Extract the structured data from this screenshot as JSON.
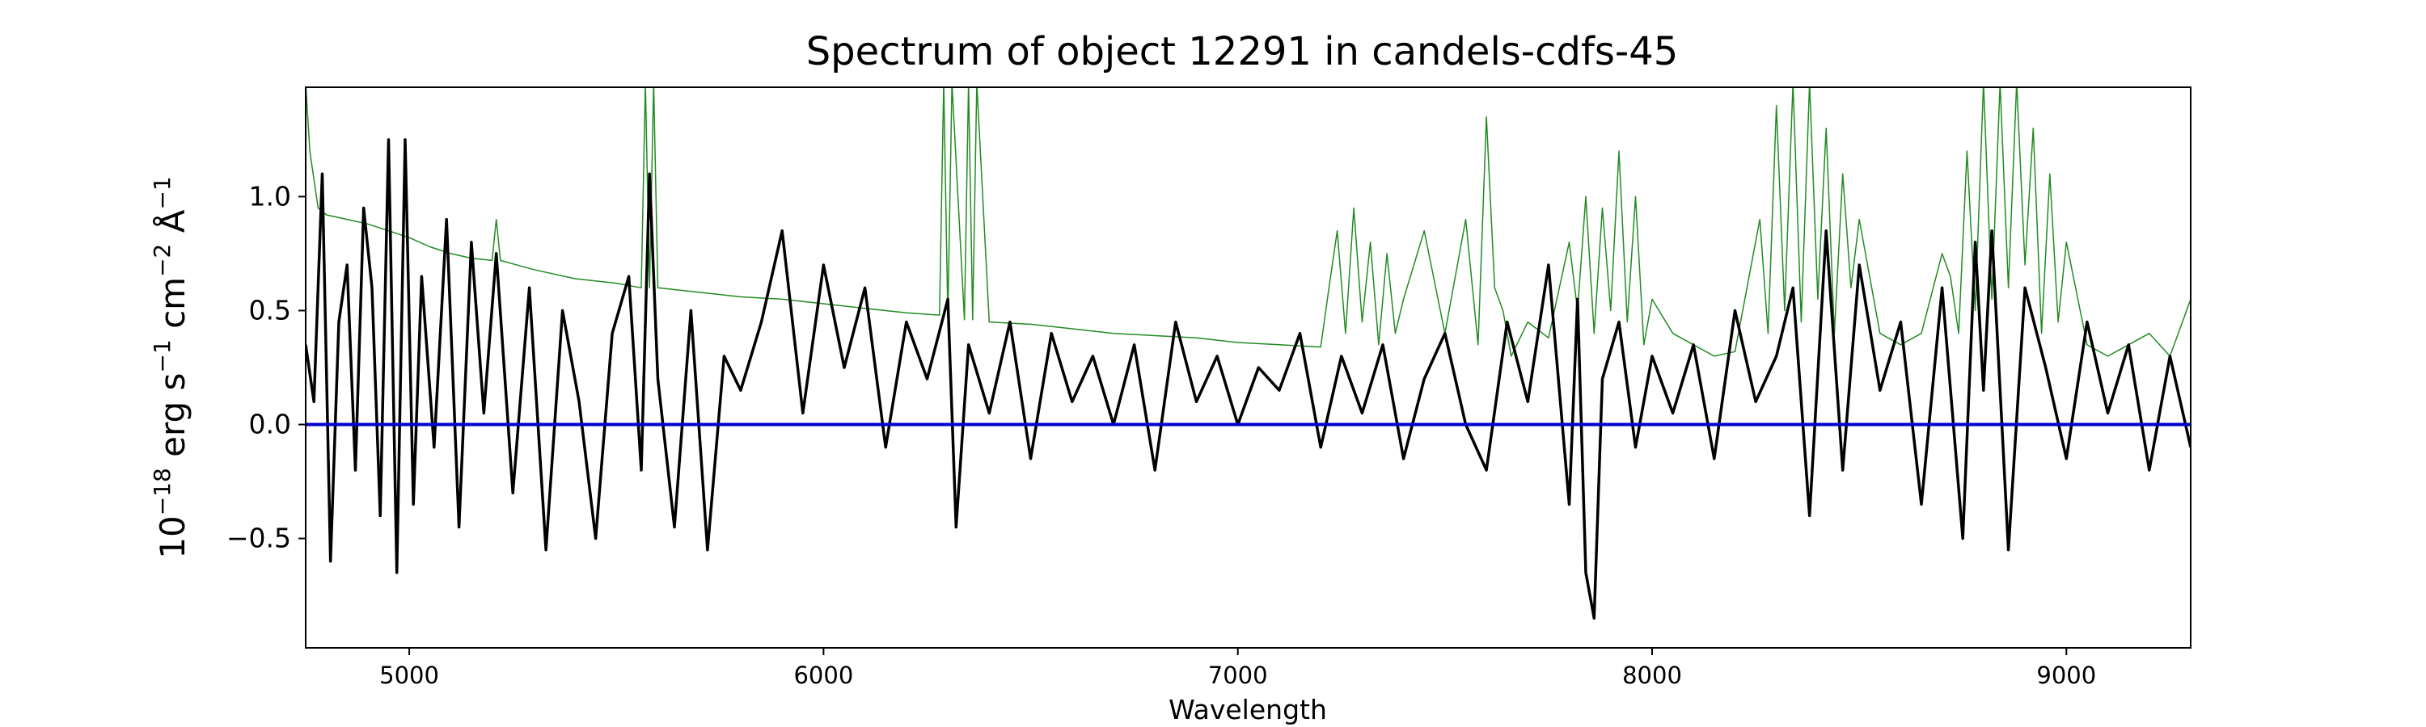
{
  "chart_data": {
    "type": "line",
    "title": "Spectrum of object 12291 in candels-cdfs-45",
    "xlabel": "Wavelength",
    "ylabel": {
      "prefix": "10",
      "exp1": "−18",
      "mid1": " erg s",
      "exp2": "−1",
      "mid2": " cm",
      "exp3": "−2",
      "mid3": " Å",
      "exp4": "−1"
    },
    "xlim": [
      4750,
      9300
    ],
    "ylim": [
      -0.98,
      1.48
    ],
    "xticks": [
      5000,
      6000,
      7000,
      8000,
      9000
    ],
    "xtick_labels": [
      "5000",
      "6000",
      "7000",
      "8000",
      "9000"
    ],
    "yticks": [
      -0.5,
      0.0,
      0.5,
      1.0
    ],
    "ytick_labels": [
      "−0.5",
      "0.0",
      "0.5",
      "1.0"
    ],
    "grid": false,
    "series": [
      {
        "role": "flux",
        "color": "#000000",
        "x": [
          4750,
          4770,
          4790,
          4810,
          4830,
          4850,
          4870,
          4890,
          4910,
          4930,
          4950,
          4970,
          4990,
          5010,
          5030,
          5060,
          5090,
          5120,
          5150,
          5180,
          5210,
          5250,
          5290,
          5330,
          5370,
          5410,
          5450,
          5490,
          5530,
          5560,
          5580,
          5600,
          5640,
          5680,
          5720,
          5760,
          5800,
          5850,
          5900,
          5950,
          6000,
          6050,
          6100,
          6150,
          6200,
          6250,
          6300,
          6320,
          6350,
          6400,
          6450,
          6500,
          6550,
          6600,
          6650,
          6700,
          6750,
          6800,
          6850,
          6900,
          6950,
          7000,
          7050,
          7100,
          7150,
          7200,
          7250,
          7300,
          7350,
          7400,
          7450,
          7500,
          7550,
          7600,
          7650,
          7700,
          7750,
          7800,
          7820,
          7840,
          7860,
          7880,
          7920,
          7960,
          8000,
          8050,
          8100,
          8150,
          8200,
          8250,
          8300,
          8340,
          8380,
          8420,
          8460,
          8500,
          8550,
          8600,
          8650,
          8700,
          8750,
          8780,
          8800,
          8820,
          8860,
          8900,
          8950,
          9000,
          9050,
          9100,
          9150,
          9200,
          9250,
          9300
        ],
        "values": [
          0.35,
          0.1,
          1.1,
          -0.6,
          0.45,
          0.7,
          -0.2,
          0.95,
          0.6,
          -0.4,
          1.25,
          -0.65,
          1.25,
          -0.35,
          0.65,
          -0.1,
          0.9,
          -0.45,
          0.8,
          0.05,
          0.75,
          -0.3,
          0.6,
          -0.55,
          0.5,
          0.1,
          -0.5,
          0.4,
          0.65,
          -0.2,
          1.1,
          0.2,
          -0.45,
          0.5,
          -0.55,
          0.3,
          0.15,
          0.45,
          0.85,
          0.05,
          0.7,
          0.25,
          0.6,
          -0.1,
          0.45,
          0.2,
          0.55,
          -0.45,
          0.35,
          0.05,
          0.45,
          -0.15,
          0.4,
          0.1,
          0.3,
          0.0,
          0.35,
          -0.2,
          0.45,
          0.1,
          0.3,
          0.0,
          0.25,
          0.15,
          0.4,
          -0.1,
          0.3,
          0.05,
          0.35,
          -0.15,
          0.2,
          0.4,
          0.0,
          -0.2,
          0.45,
          0.1,
          0.7,
          -0.35,
          0.55,
          -0.65,
          -0.85,
          0.2,
          0.45,
          -0.1,
          0.3,
          0.05,
          0.35,
          -0.15,
          0.5,
          0.1,
          0.3,
          0.6,
          -0.4,
          0.85,
          -0.2,
          0.7,
          0.15,
          0.45,
          -0.35,
          0.6,
          -0.5,
          0.8,
          0.15,
          0.85,
          -0.55,
          0.6,
          0.25,
          -0.15,
          0.45,
          0.05,
          0.35,
          -0.2,
          0.3,
          -0.1
        ]
      },
      {
        "role": "model",
        "color": "#228b22",
        "x": [
          4750,
          4760,
          4780,
          4800,
          4850,
          4900,
          4950,
          5000,
          5050,
          5100,
          5150,
          5200,
          5210,
          5220,
          5300,
          5400,
          5500,
          5560,
          5570,
          5580,
          5590,
          5600,
          5700,
          5800,
          5900,
          6000,
          6100,
          6200,
          6280,
          6290,
          6300,
          6310,
          6340,
          6350,
          6360,
          6370,
          6400,
          6500,
          6600,
          6700,
          6800,
          6900,
          7000,
          7100,
          7200,
          7220,
          7240,
          7260,
          7280,
          7300,
          7320,
          7340,
          7360,
          7380,
          7400,
          7450,
          7500,
          7550,
          7580,
          7600,
          7620,
          7640,
          7660,
          7700,
          7750,
          7800,
          7820,
          7840,
          7860,
          7880,
          7900,
          7920,
          7940,
          7960,
          7980,
          8000,
          8050,
          8100,
          8150,
          8200,
          8260,
          8280,
          8300,
          8320,
          8340,
          8360,
          8380,
          8400,
          8420,
          8440,
          8460,
          8480,
          8500,
          8550,
          8600,
          8650,
          8700,
          8720,
          8740,
          8760,
          8780,
          8800,
          8820,
          8840,
          8860,
          8880,
          8900,
          8920,
          8940,
          8960,
          8980,
          9000,
          9050,
          9100,
          9150,
          9200,
          9250,
          9280,
          9300
        ],
        "values": [
          1.5,
          1.2,
          0.95,
          0.92,
          0.9,
          0.88,
          0.85,
          0.82,
          0.78,
          0.75,
          0.73,
          0.72,
          0.9,
          0.72,
          0.68,
          0.64,
          0.62,
          0.6,
          1.5,
          0.6,
          1.5,
          0.6,
          0.58,
          0.56,
          0.55,
          0.53,
          0.51,
          0.49,
          0.48,
          1.5,
          0.47,
          1.5,
          0.46,
          1.5,
          0.46,
          1.5,
          0.45,
          0.44,
          0.42,
          0.4,
          0.39,
          0.38,
          0.36,
          0.35,
          0.34,
          0.6,
          0.85,
          0.4,
          0.95,
          0.45,
          0.8,
          0.35,
          0.75,
          0.4,
          0.55,
          0.85,
          0.4,
          0.9,
          0.35,
          1.35,
          0.6,
          0.5,
          0.3,
          0.45,
          0.38,
          0.8,
          0.5,
          1.0,
          0.4,
          0.95,
          0.5,
          1.2,
          0.45,
          1.0,
          0.35,
          0.55,
          0.4,
          0.35,
          0.3,
          0.32,
          0.9,
          0.4,
          1.4,
          0.5,
          1.5,
          0.45,
          1.5,
          0.55,
          1.3,
          0.4,
          1.1,
          0.6,
          0.9,
          0.4,
          0.35,
          0.4,
          0.75,
          0.65,
          0.4,
          1.2,
          0.5,
          1.5,
          0.55,
          1.5,
          0.6,
          1.5,
          0.7,
          1.3,
          0.4,
          1.1,
          0.45,
          0.8,
          0.35,
          0.3,
          0.35,
          0.4,
          0.3,
          0.45,
          0.55
        ]
      },
      {
        "role": "zero",
        "color": "#0000cc",
        "x": [
          4750,
          9300
        ],
        "values": [
          0.0,
          0.0
        ]
      }
    ]
  }
}
